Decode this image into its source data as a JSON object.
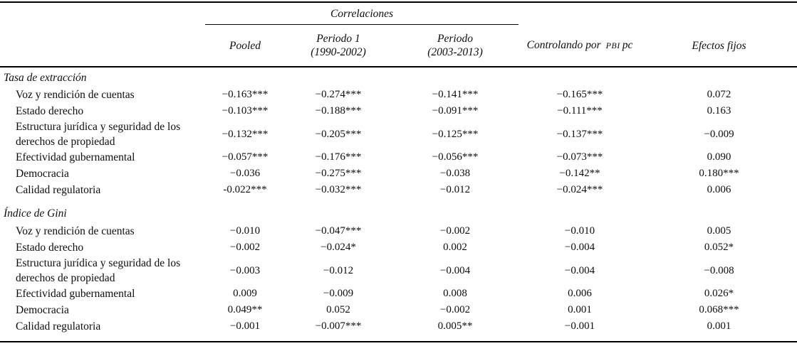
{
  "table": {
    "spanner_label": "Correlaciones",
    "col_headers": {
      "pooled": "Pooled",
      "periodo1_line1": "Periodo 1",
      "periodo1_line2": "(1990-2002)",
      "periodo2_line1": "Periodo",
      "periodo2_line2": "(2003-2013)",
      "control_pre": "Controlando por",
      "control_smallcaps": "PBI",
      "control_post": "pc",
      "efectos": "Efectos fijos"
    },
    "sections": [
      {
        "title": "Tasa de extracción",
        "rows": [
          {
            "label": "Voz y rendición de cuentas",
            "values": [
              "−0.163***",
              "−0.274***",
              "−0.141***",
              "−0.165***",
              "0.072"
            ]
          },
          {
            "label": "Estado derecho",
            "values": [
              "−0.103***",
              "−0.188***",
              "−0.091***",
              "−0.111***",
              "0.163"
            ]
          },
          {
            "label": "Estructura jurídica y seguridad de los derechos de propiedad",
            "values": [
              "−0.132***",
              "−0.205***",
              "−0.125***",
              "−0.137***",
              "−0.009"
            ]
          },
          {
            "label": "Efectividad gubernamental",
            "values": [
              "−0.057***",
              "−0.176***",
              "−0.056***",
              "−0.073***",
              "0.090"
            ]
          },
          {
            "label": "Democracia",
            "values": [
              "−0.036",
              "−0.275***",
              "−0.038",
              "−0.142**",
              "0.180***"
            ]
          },
          {
            "label": "Calidad regulatoria",
            "values": [
              "-0.022***",
              "−0.032***",
              "−0.012",
              "−0.024***",
              "0.006"
            ]
          }
        ]
      },
      {
        "title": "Índice de Gini",
        "rows": [
          {
            "label": "Voz y rendición de cuentas",
            "values": [
              "−0.010",
              "−0.047***",
              "−0.002",
              "−0.010",
              "0.005"
            ]
          },
          {
            "label": "Estado derecho",
            "values": [
              "−0.002",
              "−0.024*",
              "0.002",
              "−0.004",
              "0.052*"
            ]
          },
          {
            "label": "Estructura jurídica y seguridad de los derechos de propiedad",
            "values": [
              "−0.003",
              "−0.012",
              "−0.004",
              "−0.004",
              "−0.008"
            ]
          },
          {
            "label": "Efectividad gubernamental",
            "values": [
              "0.009",
              "−0.009",
              "0.008",
              "0.006",
              "0.026*"
            ]
          },
          {
            "label": "Democracia",
            "values": [
              "0.049**",
              "0.052",
              "−0.002",
              "0.001",
              "0.068***"
            ]
          },
          {
            "label": "Calidad regulatoria",
            "values": [
              "−0.001",
              "−0.007***",
              "0.005**",
              "−0.001",
              "0.001"
            ]
          }
        ]
      }
    ]
  }
}
